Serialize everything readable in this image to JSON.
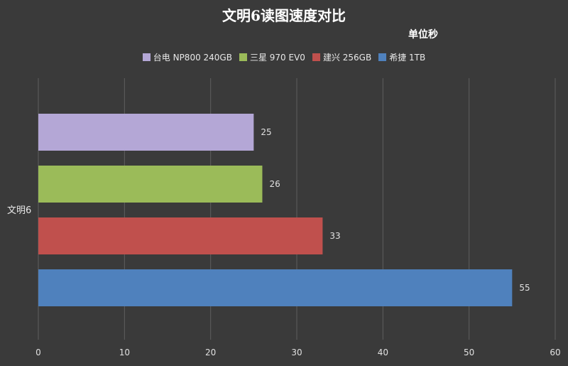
{
  "chart_data": {
    "type": "bar",
    "orientation": "horizontal",
    "title": "文明6读图速度对比",
    "subtitle": "单位秒",
    "categories": [
      "文明6"
    ],
    "series": [
      {
        "name": "台电 NP800 240GB",
        "values": [
          25
        ],
        "color": "#b4a7d6"
      },
      {
        "name": "三星 970 EV0",
        "values": [
          26
        ],
        "color": "#9bbb59"
      },
      {
        "name": "建兴 256GB",
        "values": [
          33
        ],
        "color": "#c0504d"
      },
      {
        "name": "希捷 1TB",
        "values": [
          55
        ],
        "color": "#4f81bd"
      }
    ],
    "xlim": [
      0,
      60
    ],
    "xticks": [
      0,
      10,
      20,
      30,
      40,
      50,
      60
    ],
    "grid": "vertical",
    "legend": "top-center",
    "data_labels": true
  }
}
